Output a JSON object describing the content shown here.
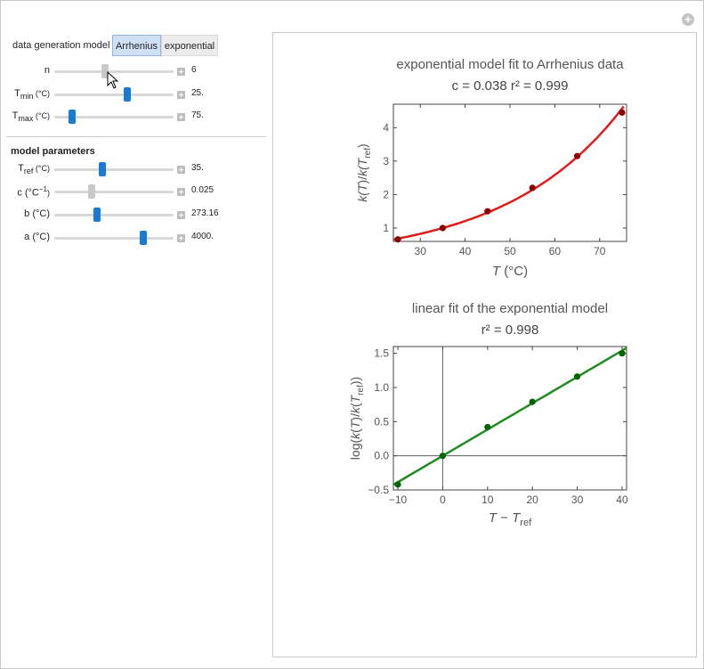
{
  "generation": {
    "label": "data generation model",
    "tabs": [
      "Arrhenius",
      "exponential"
    ],
    "selected": "Arrhenius"
  },
  "sliders_top": [
    {
      "name": "n",
      "label": "n",
      "sub": "",
      "unit": "",
      "value": "6",
      "fraction": 0.42,
      "gray": true
    },
    {
      "name": "tmin",
      "label": "T",
      "sub": "min",
      "unit": " (°C)",
      "value": "25.",
      "fraction": 0.62,
      "gray": false
    },
    {
      "name": "tmax",
      "label": "T",
      "sub": "max",
      "unit": " (°C)",
      "value": "75.",
      "fraction": 0.13,
      "gray": false
    }
  ],
  "model_parameters": {
    "heading": "model parameters",
    "sliders": [
      {
        "name": "tref",
        "label": "T",
        "sub": "ref",
        "unit": " (°C)",
        "value": "35.",
        "fraction": 0.4,
        "gray": false
      },
      {
        "name": "c",
        "label": "c (°C",
        "sub": "",
        "sup": "−1",
        "unit": ")",
        "value": "0.025",
        "fraction": 0.3,
        "gray": true
      },
      {
        "name": "b",
        "label": "b (°C)",
        "sub": "",
        "unit": "",
        "value": "273.16",
        "fraction": 0.35,
        "gray": false
      },
      {
        "name": "a",
        "label": "a (°C)",
        "sub": "",
        "unit": "",
        "value": "4000.",
        "fraction": 0.76,
        "gray": false
      }
    ]
  },
  "chart_data": [
    {
      "type": "scatter",
      "title": "exponential model fit to Arrhenius data",
      "subtitle": "c =  0.038   r² =  0.999",
      "xlabel": "T (°C)",
      "ylabel": "k(T)/k(T_ref)",
      "xlim": [
        24,
        76
      ],
      "ylim": [
        0.6,
        4.7
      ],
      "xticks": [
        30,
        40,
        50,
        60,
        70
      ],
      "yticks": [
        1,
        2,
        3,
        4
      ],
      "points": {
        "x": [
          25,
          35,
          45,
          55,
          65,
          75
        ],
        "y": [
          0.66,
          1.0,
          1.5,
          2.2,
          3.15,
          4.45
        ]
      },
      "fit": {
        "type": "exponential",
        "c": 0.038,
        "x0": 35
      },
      "colors": {
        "points": "#8b0000",
        "line": "#e01b1b"
      }
    },
    {
      "type": "scatter",
      "title": "linear fit of the exponential model",
      "subtitle": "r² =  0.998",
      "xlabel": "T − T_ref",
      "ylabel": "log(k(T)/k(T_ref))",
      "xlim": [
        -11,
        41
      ],
      "ylim": [
        -0.5,
        1.6
      ],
      "xticks": [
        -10,
        0,
        10,
        20,
        30,
        40
      ],
      "yticks": [
        -0.5,
        0.0,
        0.5,
        1.0,
        1.5
      ],
      "points": {
        "x": [
          -10,
          0,
          10,
          20,
          30,
          40
        ],
        "y": [
          -0.42,
          0.0,
          0.42,
          0.79,
          1.16,
          1.5
        ]
      },
      "fit": {
        "type": "linear",
        "slope": 0.0385,
        "intercept": 0.0
      },
      "colors": {
        "points": "#006400",
        "line": "#1e8c1e"
      }
    }
  ]
}
